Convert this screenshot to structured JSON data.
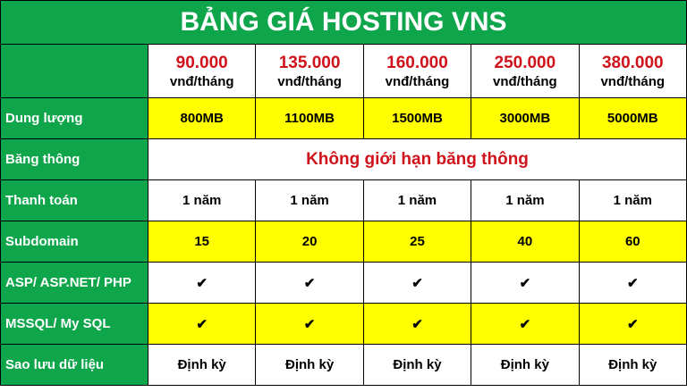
{
  "title": "BẢNG GIÁ HOSTING VNS",
  "colors": {
    "header_green": "#0fa54b",
    "highlight_yellow": "#ffff00",
    "price_red": "#d0121b"
  },
  "plans": [
    {
      "price": "90.000",
      "unit": "vnđ/tháng"
    },
    {
      "price": "135.000",
      "unit": "vnđ/tháng"
    },
    {
      "price": "160.000",
      "unit": "vnđ/tháng"
    },
    {
      "price": "250.000",
      "unit": "vnđ/tháng"
    },
    {
      "price": "380.000",
      "unit": "vnđ/tháng"
    }
  ],
  "rows": {
    "storage": {
      "label": "Dung lượng",
      "values": [
        "800MB",
        "1100MB",
        "1500MB",
        "3000MB",
        "5000MB"
      ]
    },
    "bandwidth": {
      "label": "Băng thông",
      "value": "Không giới hạn băng thông"
    },
    "payment": {
      "label": "Thanh toán",
      "values": [
        "1 năm",
        "1 năm",
        "1 năm",
        "1 năm",
        "1 năm"
      ]
    },
    "subdomain": {
      "label": "Subdomain",
      "values": [
        "15",
        "20",
        "25",
        "40",
        "60"
      ]
    },
    "asp": {
      "label": "ASP/ ASP.NET/ PHP",
      "values": [
        "✔",
        "✔",
        "✔",
        "✔",
        "✔"
      ]
    },
    "sql": {
      "label": "MSSQL/ My SQL",
      "values": [
        "✔",
        "✔",
        "✔",
        "✔",
        "✔"
      ]
    },
    "backup": {
      "label": "Sao lưu dữ liệu",
      "values": [
        "Định kỳ",
        "Định kỳ",
        "Định kỳ",
        "Định kỳ",
        "Định kỳ"
      ]
    }
  }
}
